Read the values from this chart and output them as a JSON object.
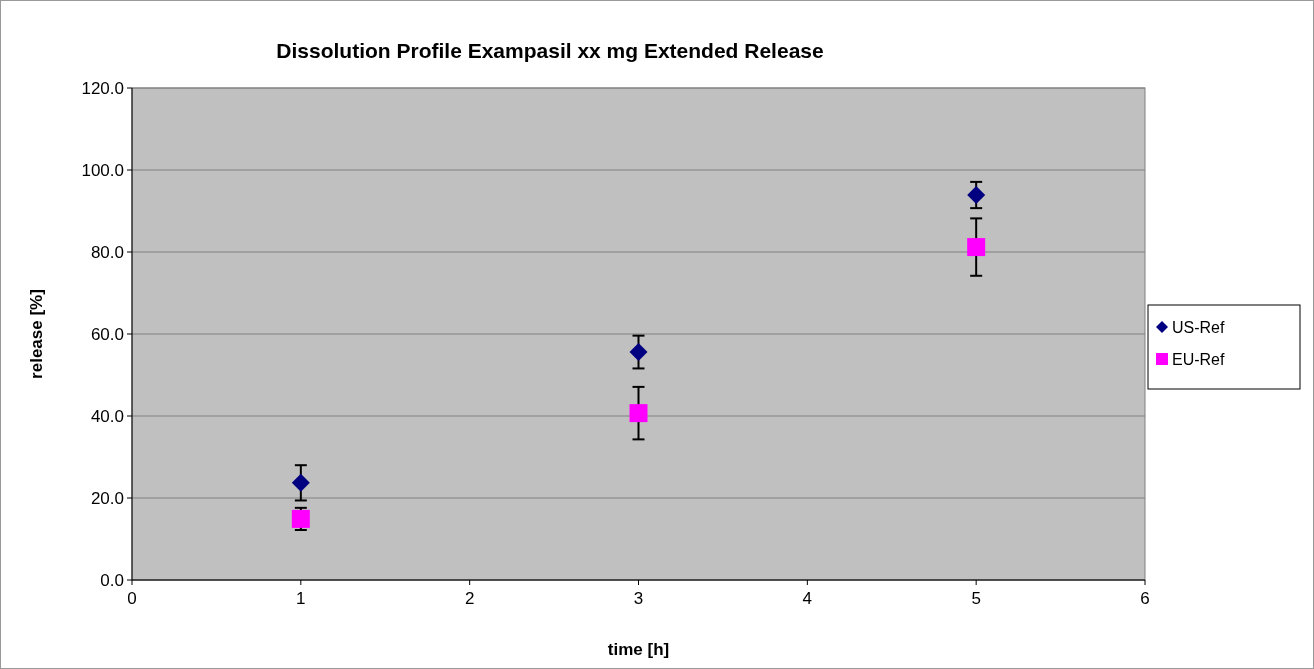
{
  "chart_data": {
    "type": "scatter",
    "title": "Dissolution Profile Exampasil xx mg Extended Release",
    "xlabel": "time [h]",
    "ylabel": "release [%]",
    "x": [
      1,
      3,
      5
    ],
    "series": [
      {
        "name": "US-Ref",
        "color": "#000080",
        "marker": "diamond",
        "values": [
          23.7,
          55.6,
          93.9
        ],
        "errors": [
          4.3,
          4.0,
          3.2
        ]
      },
      {
        "name": "EU-Ref",
        "color": "#ff00ff",
        "marker": "square",
        "values": [
          14.9,
          40.7,
          81.2
        ],
        "errors": [
          2.7,
          6.4,
          7.0
        ]
      }
    ],
    "xlim": [
      0,
      6
    ],
    "xticks": [
      0,
      1,
      2,
      3,
      4,
      5,
      6
    ],
    "ylim": [
      0,
      120
    ],
    "yticks": [
      {
        "value": 0,
        "label": "0.0"
      },
      {
        "value": 20,
        "label": "20.0"
      },
      {
        "value": 40,
        "label": "40.0"
      },
      {
        "value": 60,
        "label": "60.0"
      },
      {
        "value": 80,
        "label": "80.0"
      },
      {
        "value": 100,
        "label": "100.0"
      },
      {
        "value": 120,
        "label": "120.0"
      }
    ],
    "grid": "y",
    "legend": "right"
  }
}
